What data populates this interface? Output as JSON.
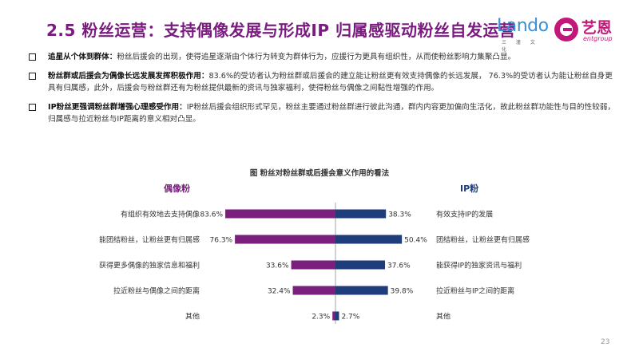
{
  "header": {
    "title": "2.5 粉丝运营：支持偶像发展与形成IP 归属感驱动粉丝自发运营",
    "logo_lando": "Lando",
    "logo_lando_sub": "三 潼 文 化",
    "logo_entgroup_cn": "艺恩",
    "logo_entgroup_en": "entgroup"
  },
  "bullets": [
    {
      "lead": "追星从个体到群体：",
      "text": "粉丝后援会的出现，使得追星逐渐由个体行为转变为群体行为，应援行为更具有组织性，从而使粉丝影响力集聚凸显。"
    },
    {
      "lead": "粉丝群或后援会为偶像长远发展发挥积极作用：",
      "text": "83.6%的受访者认为粉丝群或后援会的建立能让粉丝更有效支持偶像的长远发展， 76.3%的受访者认为能让粉丝自身更具有归属感，此外，后援会与粉丝群还有为粉丝提供最新的资讯与独家福利，使得粉丝与偶像之间黏性增强的作用。"
    },
    {
      "lead": "IP粉丝更强调粉丝群增强心理感受作用：",
      "text": "IP粉丝后援会组织形式罕见，粉丝主要通过粉丝群进行彼此沟通，群内内容更加偏向生活化，故此粉丝群功能性与目的性较弱，归属感与拉近粉丝与IP距离的意义相对凸显。"
    }
  ],
  "chart_data": {
    "type": "bar",
    "title": "图  粉丝对粉丝群或后援会意义作用的看法",
    "series": [
      {
        "name": "偶像粉",
        "color": "#7b1f7c",
        "categories": [
          "有组织有效地去支持偶像",
          "能团结粉丝，让粉丝更有归属感",
          "获得更多偶像的独家信息和福利",
          "拉近粉丝与偶像之间的距离",
          "其他"
        ],
        "values": [
          83.6,
          76.3,
          33.6,
          32.4,
          2.3
        ],
        "labels": [
          "83.6%",
          "76.3%",
          "33.6%",
          "32.4%",
          "2.3%"
        ]
      },
      {
        "name": "IP粉",
        "color": "#1f3d7a",
        "categories": [
          "有效支持IP的发展",
          "团结粉丝，让粉丝更有归属感",
          "能获得IP的独家资讯与福利",
          "拉近粉丝与IP之间的距离",
          "其他"
        ],
        "values": [
          38.3,
          50.4,
          37.6,
          39.8,
          2.7
        ],
        "labels": [
          "38.3%",
          "50.4%",
          "37.6%",
          "39.8%",
          "2.7%"
        ]
      }
    ]
  },
  "page_number": "23"
}
